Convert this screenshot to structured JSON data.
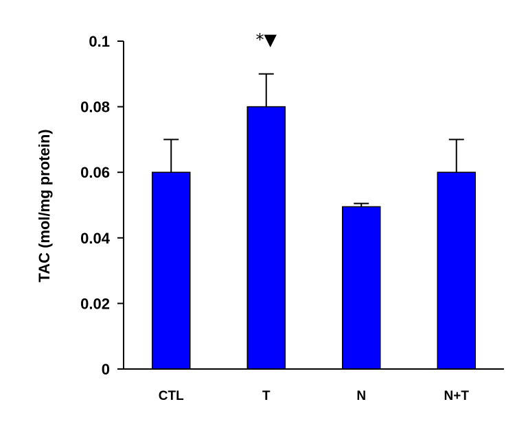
{
  "chart_data": {
    "type": "bar",
    "categories": [
      "CTL",
      "T",
      "N",
      "N+T"
    ],
    "values": [
      0.06,
      0.08,
      0.0495,
      0.06
    ],
    "error_upper": [
      0.07,
      0.09,
      0.0505,
      0.07
    ],
    "ylabel": "TAC (mol/mg protein)",
    "xlabel": "",
    "ylim": [
      0,
      0.1
    ],
    "yticks": [
      0,
      0.02,
      0.04,
      0.06,
      0.08,
      0.1
    ],
    "ytick_labels": [
      "0",
      "0.02",
      "0.04",
      "0.06",
      "0.08",
      "0.1"
    ],
    "annotations": [
      {
        "category": "T",
        "text": "*▼"
      }
    ],
    "bar_color": "#0000ff",
    "grid": false,
    "legend": "none"
  }
}
